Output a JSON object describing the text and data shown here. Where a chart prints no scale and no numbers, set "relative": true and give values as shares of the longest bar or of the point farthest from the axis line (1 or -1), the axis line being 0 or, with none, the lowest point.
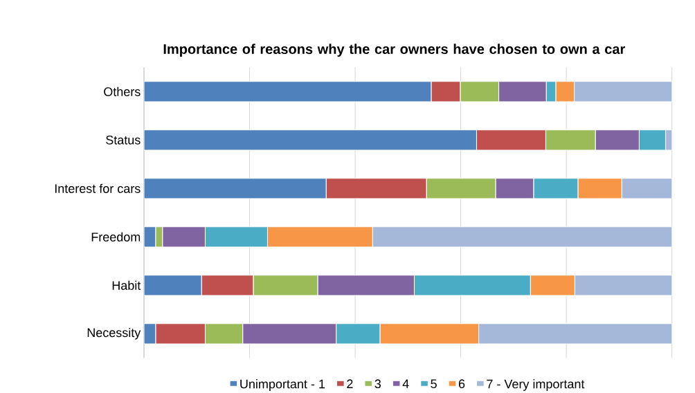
{
  "chart_data": {
    "type": "bar",
    "title": "Importance of reasons why the car owners have chosen to own a car",
    "orientation": "horizontal",
    "stacked": true,
    "relative": true,
    "grid": "x",
    "legend": "bottom",
    "categories": [
      "Others",
      "Status",
      "Interest for cars",
      "Freedom",
      "Habit",
      "Necessity"
    ],
    "series": [
      {
        "name": "Unimportant - 1",
        "color": "#4f81bd",
        "values": [
          0.544,
          0.63,
          0.345,
          0.022,
          0.109,
          0.022
        ]
      },
      {
        "name": "2",
        "color": "#c0504d",
        "values": [
          0.055,
          0.131,
          0.19,
          0,
          0.098,
          0.094
        ]
      },
      {
        "name": "3",
        "color": "#9bbb59",
        "values": [
          0.073,
          0.094,
          0.131,
          0.013,
          0.122,
          0.071
        ]
      },
      {
        "name": "4",
        "color": "#8064a2",
        "values": [
          0.09,
          0.083,
          0.072,
          0.081,
          0.183,
          0.177
        ]
      },
      {
        "name": "5",
        "color": "#4bacc6",
        "values": [
          0.018,
          0.05,
          0.084,
          0.118,
          0.22,
          0.083
        ]
      },
      {
        "name": "6",
        "color": "#f79646",
        "values": [
          0.035,
          0,
          0.083,
          0.199,
          0.084,
          0.187
        ]
      },
      {
        "name": "7 - Very important",
        "color": "#a5b8d9",
        "values": [
          0.185,
          0.012,
          0.095,
          0.567,
          0.184,
          0.366
        ]
      }
    ]
  }
}
